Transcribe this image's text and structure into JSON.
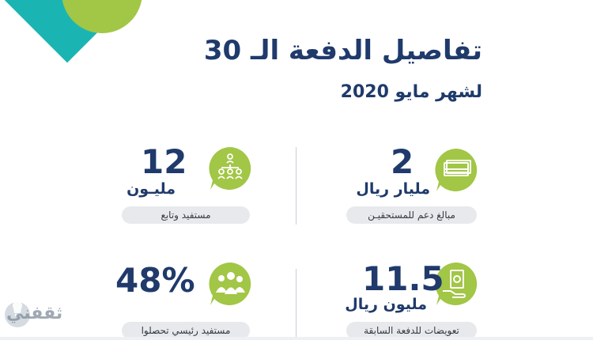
{
  "header": {
    "title": "تفاصيل الدفعة الـ 30",
    "subtitle": "لشهر مايو 2020"
  },
  "stats": [
    {
      "number": "2",
      "unit": "مليار ريال",
      "label": "مبالغ دعم للمستحقيـن",
      "icon": "money-stack-icon"
    },
    {
      "number": "12",
      "unit": "مليـون",
      "label": "مستفيد وتابع",
      "icon": "people-hierarchy-icon"
    },
    {
      "number": "11.5",
      "unit": "مليون ريال",
      "label": "تعويضات للدفعة السابقة",
      "icon": "cash-hand-icon"
    },
    {
      "number": "48%",
      "unit": "",
      "label": "مستفيد رئيسي تحصلوا",
      "icon": "family-icon"
    }
  ],
  "watermark": {
    "text": "ثقفني"
  },
  "colors": {
    "navy": "#1f3a6b",
    "green": "#a2c646",
    "teal": "#1ab5b2",
    "pill": "#e8e9ec"
  }
}
